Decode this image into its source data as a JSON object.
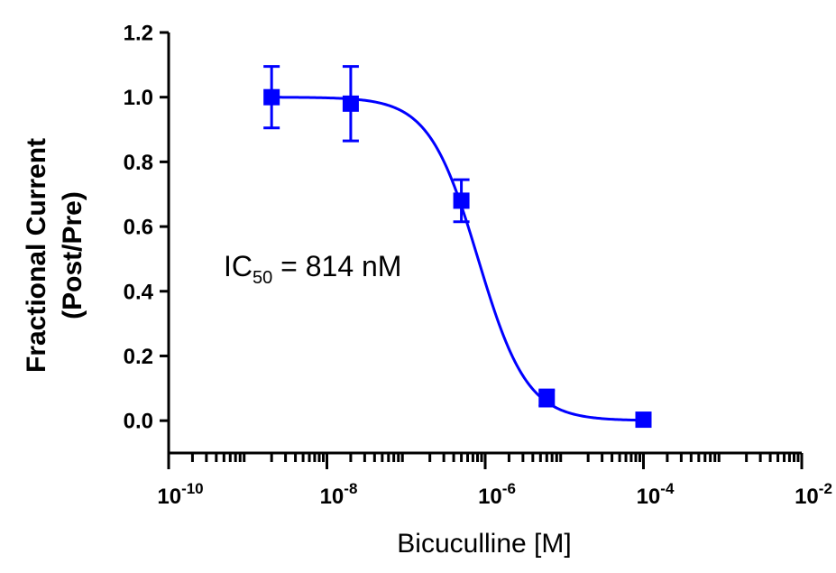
{
  "chart_data": {
    "type": "scatter",
    "xlabel": "Bicuculline [M]",
    "ylabel_lines": [
      "Fractional Current",
      "(Post/Pre)"
    ],
    "x_scale": "log",
    "xlim": [
      1e-10,
      0.01
    ],
    "ylim": [
      -0.1,
      1.2
    ],
    "x_ticks": [
      {
        "base": "10",
        "exp": "-10"
      },
      {
        "base": "10",
        "exp": "-8"
      },
      {
        "base": "10",
        "exp": "-6"
      },
      {
        "base": "10",
        "exp": "-4"
      },
      {
        "base": "10",
        "exp": "-2"
      }
    ],
    "y_ticks": [
      "0.0",
      "0.2",
      "0.4",
      "0.6",
      "0.8",
      "1.0",
      "1.2"
    ],
    "series": [
      {
        "color": "#0000ff",
        "marker": "square",
        "points": [
          {
            "x": 2e-09,
            "y": 1.0,
            "err": 0.095
          },
          {
            "x": 2e-08,
            "y": 0.98,
            "err": 0.115
          },
          {
            "x": 5e-07,
            "y": 0.68,
            "err": 0.065
          },
          {
            "x": 6e-06,
            "y": 0.07,
            "err": 0.025
          },
          {
            "x": 0.0001,
            "y": 0.003,
            "err": 0.0
          }
        ],
        "fit": {
          "model": "four-parameter logistic",
          "top": 1.0,
          "bottom": 0.0,
          "ic50": 8.14e-07,
          "hill": 1.4
        }
      }
    ],
    "annotation": {
      "prefix": "IC",
      "subscript": "50",
      "suffix": " = 814 nM"
    },
    "grid": false
  }
}
